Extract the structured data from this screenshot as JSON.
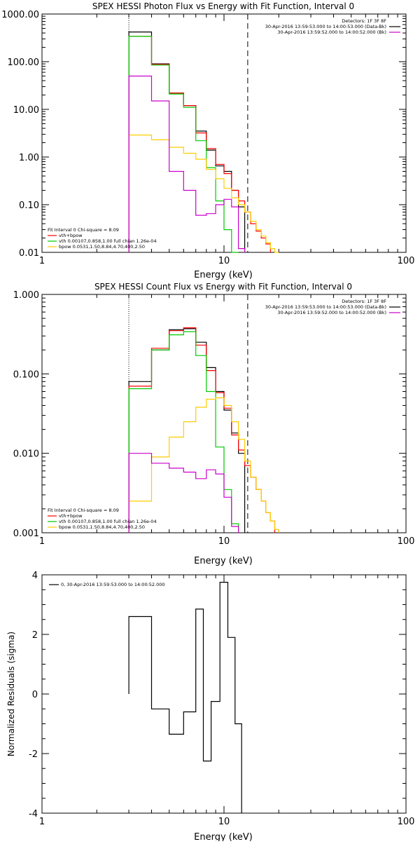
{
  "colors": {
    "background": "#ffffff",
    "axes": "#000000",
    "data_minus_bk": "#000000",
    "total_model": "#ff0000",
    "vth": "#00cc00",
    "bpow": "#ffcc00",
    "bpow_plus_vth": "#cc00cc"
  },
  "chart_data": [
    {
      "type": "line",
      "style": "step",
      "title": "SPEX HESSI Photon Flux vs Energy with Fit Function, Interval 0",
      "xlabel": "Energy (keV)",
      "ylabel": "",
      "xscale": "log",
      "yscale": "log",
      "xlim": [
        1,
        100
      ],
      "ylim": [
        0.01,
        1000
      ],
      "x_ticks": [
        "1",
        "10",
        "100"
      ],
      "y_ticks": [
        "0.01",
        "0.10",
        "1.00",
        "10.00",
        "100.00",
        "1000.00"
      ],
      "vlines": [
        {
          "x": 3,
          "style": "dotted"
        },
        {
          "x": 13.5,
          "style": "dashed"
        }
      ],
      "legend_top_right": [
        "Detectors: 1F 3F 8F",
        "30-Apr-2016 13:59:53.000 to 14:00:53.000 (Data-Bk)",
        "30-Apr-2016 13:59:52.000 to 14:00:52.000 (Bk)"
      ],
      "legend_top_right_colors": [
        "",
        "#000000",
        "#cc00cc"
      ],
      "legend_bottom_left": [
        "Fit Interval 0   Chi-square = 8.09",
        "vth+bpow",
        "vth 0.00107,0.858,1.00  full chian 1.26e-04",
        "bpow 0.0531,1.50,8.84,4.70,400,2.50"
      ],
      "legend_bottom_left_colors": [
        "",
        "#ff0000",
        "#00cc00",
        "#ffcc00"
      ],
      "bin_edges": [
        3,
        4,
        5,
        6,
        7,
        8,
        9,
        10,
        11,
        12,
        13,
        14,
        15,
        16,
        17,
        18,
        19,
        20,
        22,
        24
      ],
      "series": [
        {
          "color": "#000000",
          "values": [
            420,
            90,
            22,
            12,
            3.5,
            1.4,
            0.65,
            0.5,
            0.2,
            0.09,
            null,
            null,
            null,
            null,
            null,
            null,
            null,
            null,
            null
          ]
        },
        {
          "color": "#ff0000",
          "values": [
            340,
            88,
            22,
            12,
            3.2,
            1.5,
            0.7,
            0.45,
            0.2,
            0.12,
            0.07,
            0.04,
            0.028,
            0.02,
            0.015,
            null,
            null,
            null,
            null
          ]
        },
        {
          "color": "#00cc00",
          "values": [
            340,
            85,
            21,
            11,
            2.2,
            0.6,
            0.12,
            0.03,
            0.01,
            null,
            null,
            null,
            null,
            null,
            null,
            null,
            null,
            null,
            null
          ]
        },
        {
          "color": "#ffcc00",
          "values": [
            2.9,
            2.3,
            1.6,
            1.2,
            0.9,
            0.55,
            0.35,
            0.22,
            0.14,
            0.1,
            0.07,
            0.045,
            0.03,
            0.022,
            0.016,
            0.012,
            0.01,
            null,
            null
          ]
        },
        {
          "color": "#cc00cc",
          "values": [
            50,
            15,
            0.5,
            0.2,
            0.06,
            0.065,
            0.1,
            0.13,
            0.09,
            0.012,
            null,
            null,
            null,
            null,
            null,
            null,
            null,
            null,
            null
          ]
        }
      ]
    },
    {
      "type": "line",
      "style": "step",
      "title": "SPEX HESSI Count Flux vs Energy with Fit Function, Interval 0",
      "xlabel": "Energy (keV)",
      "ylabel": "",
      "xscale": "log",
      "yscale": "log",
      "xlim": [
        1,
        100
      ],
      "ylim": [
        0.001,
        1
      ],
      "x_ticks": [
        "1",
        "10",
        "100"
      ],
      "y_ticks": [
        "0.001",
        "0.010",
        "0.100",
        "1.000"
      ],
      "vlines": [
        {
          "x": 3,
          "style": "dotted"
        },
        {
          "x": 13.5,
          "style": "dashed"
        }
      ],
      "legend_top_right": [
        "Detectors: 1F 3F 8F",
        "30-Apr-2016 13:59:53.000 to 14:00:53.000 (Data-Bk)",
        "30-Apr-2016 13:59:52.000 to 14:00:52.000 (Bk)"
      ],
      "legend_top_right_colors": [
        "",
        "#000000",
        "#cc00cc"
      ],
      "legend_bottom_left": [
        "Fit Interval 0   Chi-square = 8.09",
        "vth+bpow",
        "vth 0.00107,0.858,1.00  full chian 1.26e-04",
        "bpow 0.0531,1.50,8.84,4.70,400,2.50"
      ],
      "legend_bottom_left_colors": [
        "",
        "#ff0000",
        "#00cc00",
        "#ffcc00"
      ],
      "bin_edges": [
        3,
        4,
        5,
        6,
        7,
        8,
        9,
        10,
        11,
        12,
        13,
        14,
        15,
        16,
        17,
        18,
        19,
        20,
        22,
        24
      ],
      "series": [
        {
          "color": "#000000",
          "values": [
            0.08,
            0.2,
            0.36,
            0.37,
            0.25,
            0.12,
            0.06,
            0.035,
            0.018,
            0.01,
            null,
            null,
            null,
            null,
            null,
            null,
            null,
            null,
            null
          ]
        },
        {
          "color": "#ff0000",
          "values": [
            0.07,
            0.21,
            0.35,
            0.38,
            0.23,
            0.11,
            0.058,
            0.037,
            0.017,
            0.011,
            0.007,
            0.005,
            0.0035,
            0.0025,
            0.0018,
            0.0014,
            null,
            null,
            null
          ]
        },
        {
          "color": "#00cc00",
          "values": [
            0.065,
            0.2,
            0.31,
            0.34,
            0.17,
            0.06,
            0.012,
            0.0035,
            0.0013,
            null,
            null,
            null,
            null,
            null,
            null,
            null,
            null,
            null,
            null
          ]
        },
        {
          "color": "#ffcc00",
          "values": [
            0.0025,
            0.009,
            0.016,
            0.025,
            0.038,
            0.048,
            0.05,
            0.04,
            0.025,
            0.015,
            0.008,
            0.005,
            0.0035,
            0.0025,
            0.0018,
            0.0014,
            0.0011,
            null,
            null
          ]
        },
        {
          "color": "#cc00cc",
          "values": [
            0.01,
            0.0075,
            0.0065,
            0.0058,
            0.0048,
            0.0062,
            0.0055,
            0.0028,
            0.0012,
            null,
            null,
            null,
            null,
            null,
            null,
            null,
            null,
            null,
            null
          ]
        }
      ]
    },
    {
      "type": "line",
      "style": "step",
      "title": "",
      "xlabel": "Energy (keV)",
      "ylabel": "Normalized Residuals (sigma)",
      "xscale": "log",
      "yscale": "linear",
      "xlim": [
        1,
        100
      ],
      "ylim": [
        -4,
        4
      ],
      "x_ticks": [
        "1",
        "10",
        "100"
      ],
      "y_ticks": [
        "-4",
        "-2",
        "0",
        "2",
        "4"
      ],
      "legend": [
        "0, 30-Apr-2016 13:59:53.000 to 14:00:52.000"
      ],
      "legend_colors": [
        "#000000"
      ],
      "bin_edges": [
        3,
        4,
        5,
        6,
        7,
        7.7,
        8.5,
        9.5,
        10.5,
        11.5,
        12.5,
        13.5
      ],
      "series": [
        {
          "color": "#000000",
          "values": [
            2.6,
            -0.5,
            -1.35,
            -0.6,
            2.85,
            -2.25,
            -0.25,
            3.75,
            1.9,
            -1.0,
            null
          ]
        }
      ]
    }
  ]
}
